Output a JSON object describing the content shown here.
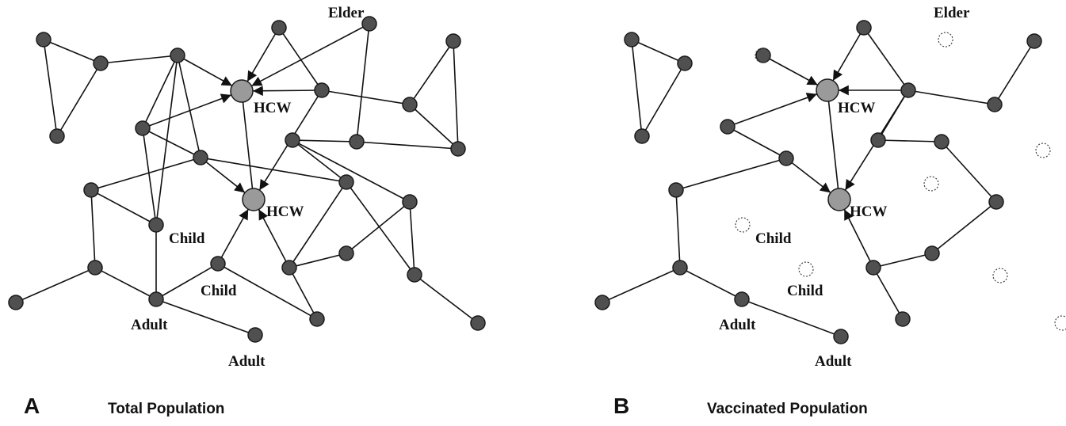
{
  "panels": [
    {
      "letter": "A",
      "title": "Total Population",
      "labels": [
        "Elder",
        "HCW",
        "HCW",
        "Child",
        "Child",
        "Adult",
        "Adult"
      ]
    },
    {
      "letter": "B",
      "title": "Vaccinated Population",
      "labels": [
        "Elder",
        "HCW",
        "HCW",
        "Child",
        "Child",
        "Adult",
        "Adult"
      ]
    }
  ]
}
